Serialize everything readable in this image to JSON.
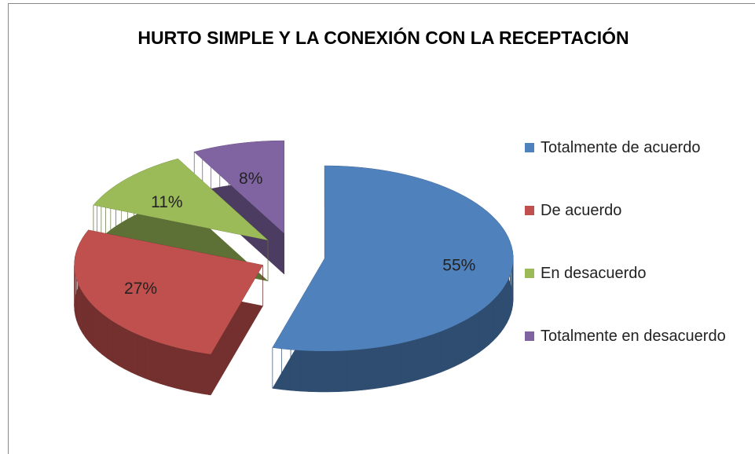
{
  "chart_data": {
    "type": "pie",
    "title": "HURTO SIMPLE Y LA CONEXIÓN CON LA RECEPTACIÓN",
    "categories": [
      "Totalmente de acuerdo",
      "De acuerdo",
      "En desacuerdo",
      "Totalmente en desacuerdo"
    ],
    "values": [
      55,
      27,
      11,
      8
    ],
    "value_labels": [
      "55%",
      "27%",
      "11%",
      "8%"
    ],
    "colors": [
      "#4f81bd",
      "#c0504d",
      "#9bbb59",
      "#8064a2"
    ],
    "legend": "right"
  }
}
